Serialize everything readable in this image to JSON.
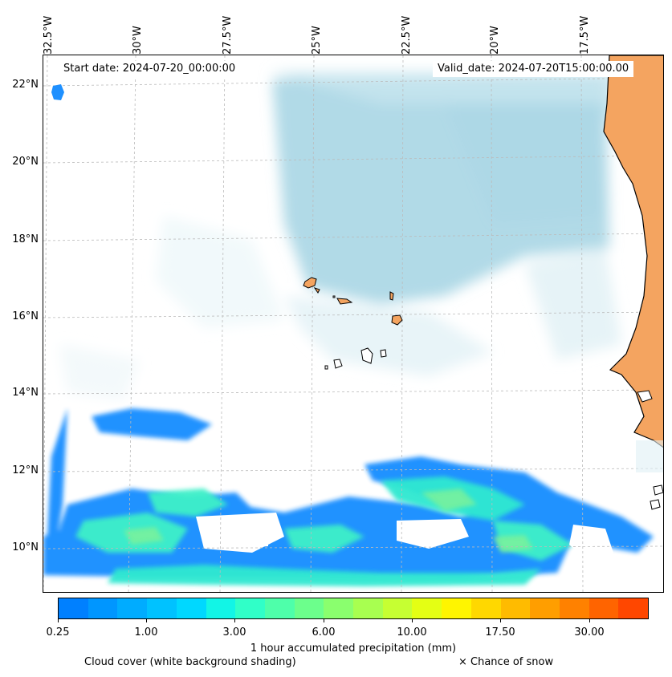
{
  "map": {
    "start_date": "Start date: 2024-07-20_00:00:00",
    "valid_date": "Valid_date: 2024-07-20T15:00:00.00",
    "lon_labels": [
      "32.5°W",
      "30°W",
      "27.5°W",
      "25°W",
      "22.5°W",
      "20°W",
      "17.5°W"
    ],
    "lat_labels": [
      "22°N",
      "20°N",
      "18°N",
      "16°N",
      "14°N",
      "12°N",
      "10°N"
    ],
    "colors": {
      "land": "#f4a460",
      "cloud": "#add8e6",
      "coast": "#000000"
    }
  },
  "colorbar": {
    "colors": [
      "#0080ff",
      "#0096ff",
      "#00acff",
      "#00c2ff",
      "#00d8ff",
      "#12f5e6",
      "#30ffc8",
      "#4effaa",
      "#6cff8c",
      "#8aff6e",
      "#a8ff50",
      "#c6ff32",
      "#e4ff14",
      "#fff500",
      "#ffd800",
      "#ffbb00",
      "#ff9e00",
      "#ff8100",
      "#ff6400",
      "#ff4700"
    ],
    "tick_labels": [
      "0.25",
      "1.00",
      "3.00",
      "6.00",
      "10.00",
      "17.50",
      "30.00"
    ],
    "label": "1 hour accumulated precipitation (mm)"
  },
  "legend": {
    "cloud_cover": "Cloud cover (white background shading)",
    "snow": "× Chance of snow"
  }
}
